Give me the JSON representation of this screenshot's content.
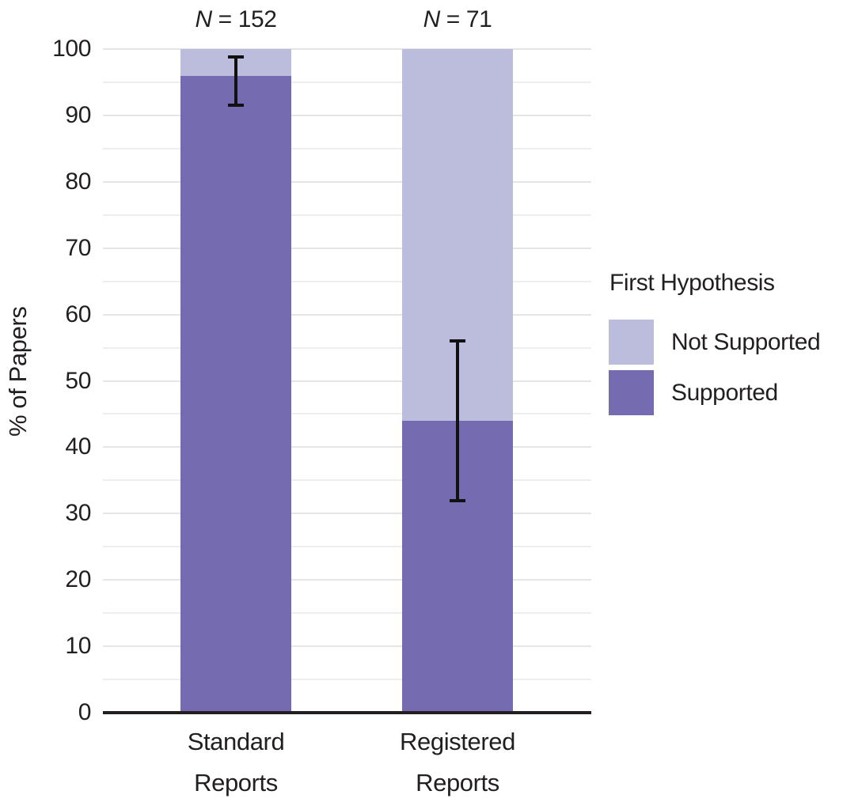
{
  "figure": {
    "ylabel": "% of Papers",
    "legend_title": "First Hypothesis"
  },
  "chart_data": {
    "type": "bar",
    "stacked": true,
    "title": "",
    "xlabel": "",
    "ylabel": "% of Papers",
    "ylim": [
      0,
      100
    ],
    "yticks": [
      "0",
      "10",
      "20",
      "30",
      "40",
      "50",
      "60",
      "70",
      "80",
      "90",
      "100"
    ],
    "ytick_values": [
      0,
      10,
      20,
      30,
      40,
      50,
      60,
      70,
      80,
      90,
      100
    ],
    "minor_grid_step": 5,
    "grid": true,
    "categories": [
      "Standard Reports",
      "Registered Reports"
    ],
    "category_lines": [
      [
        "Standard",
        "Reports"
      ],
      [
        "Registered",
        "Reports"
      ]
    ],
    "n_annotations": [
      {
        "symbol": "N",
        "eq": "=",
        "value": "152"
      },
      {
        "symbol": "N",
        "eq": "=",
        "value": "71"
      }
    ],
    "series": [
      {
        "name": "Supported",
        "color": "#756bb1",
        "values": [
          96,
          44
        ]
      },
      {
        "name": "Not Supported",
        "color": "#bcbddc",
        "values": [
          4,
          56
        ]
      }
    ],
    "error_bars": [
      {
        "low": 91.5,
        "high": 98.8
      },
      {
        "low": 32,
        "high": 56
      }
    ],
    "legend": {
      "title": "First Hypothesis",
      "position": "right",
      "entries": [
        {
          "label": "Not Supported",
          "color": "#bcbddc"
        },
        {
          "label": "Supported",
          "color": "#756bb1"
        }
      ]
    },
    "colors": {
      "supported": "#756bb1",
      "not_supported": "#bcbddc",
      "grid_major": "#e5e5e8",
      "grid_minor": "#eeeef0",
      "axis": "#231f20",
      "errorbar": "#111111",
      "text": "#231f20"
    }
  }
}
